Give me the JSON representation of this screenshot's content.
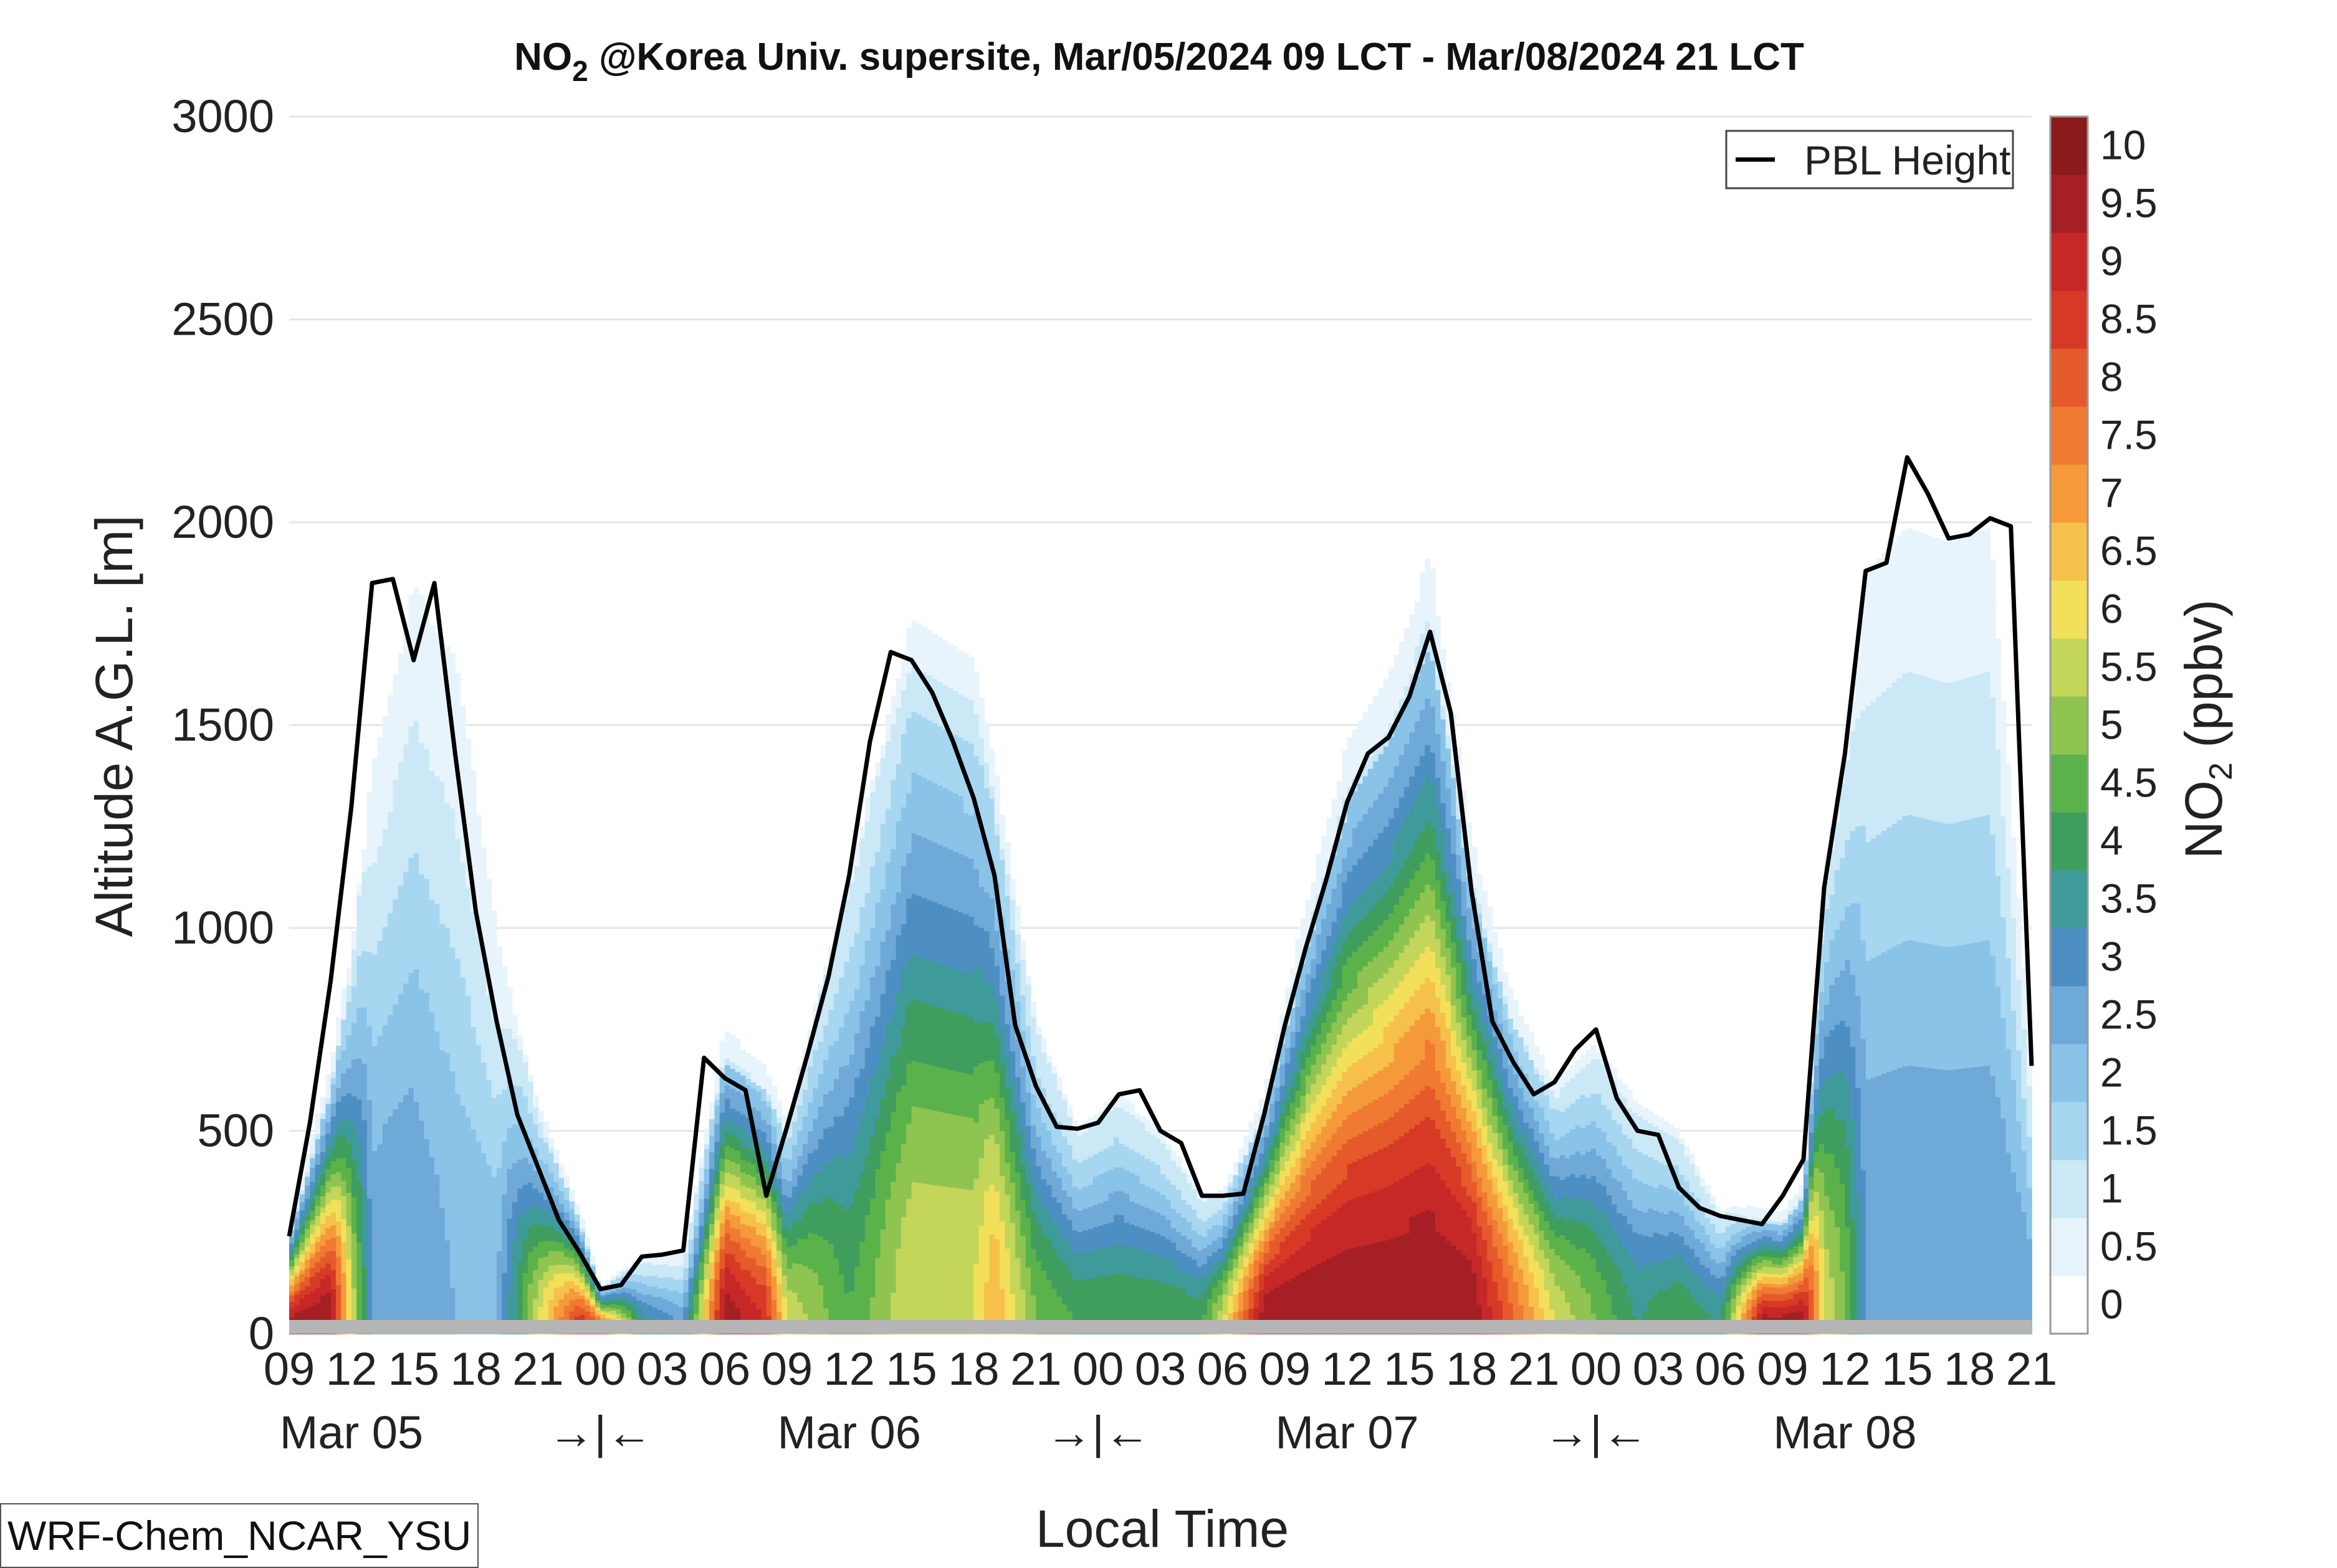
{
  "chart_data": {
    "type": "contour",
    "title_parts": [
      "NO",
      "2",
      " @Korea Univ. supersite, Mar/05/2024 09 LCT - Mar/08/2024 21 LCT"
    ],
    "ylabel": "Altitude A.G.L. [m]",
    "xlabel": "Local Time",
    "ylim": [
      0,
      3000
    ],
    "y_ticks": [
      0,
      500,
      1000,
      1500,
      2000,
      2500,
      3000
    ],
    "x_range_hours": [
      0,
      84
    ],
    "x_hour_ticks": [
      "09",
      "12",
      "15",
      "18",
      "21",
      "00",
      "03",
      "06",
      "09",
      "12",
      "15",
      "18",
      "21",
      "00",
      "03",
      "06",
      "09",
      "12",
      "15",
      "18",
      "21",
      "00",
      "03",
      "06",
      "09",
      "12",
      "15",
      "18",
      "21"
    ],
    "x_day_labels": [
      {
        "label": "Mar 05",
        "hour": 3
      },
      {
        "label": "→|←",
        "hour": 15
      },
      {
        "label": "Mar 06",
        "hour": 27
      },
      {
        "label": "→|←",
        "hour": 39
      },
      {
        "label": "Mar 07",
        "hour": 51
      },
      {
        "label": "→|←",
        "hour": 63
      },
      {
        "label": "Mar 08",
        "hour": 75
      }
    ],
    "legend": {
      "label": "PBL Height",
      "placement": "top-right"
    },
    "colorbar": {
      "label_parts": [
        "NO",
        "2",
        " (ppbv)"
      ],
      "ticks": [
        "0",
        "0.5",
        "1",
        "1.5",
        "2",
        "2.5",
        "3",
        "3.5",
        "4",
        "4.5",
        "5",
        "5.5",
        "6",
        "6.5",
        "7",
        "7.5",
        "8",
        "8.5",
        "9",
        "9.5",
        "10"
      ],
      "levels": [
        0,
        0.5,
        1,
        1.5,
        2,
        2.5,
        3,
        3.5,
        4,
        4.5,
        5,
        5.5,
        6,
        6.5,
        7,
        7.5,
        8,
        8.5,
        9,
        9.5,
        10,
        10.5
      ],
      "colors": [
        "#ffffff",
        "#e8f4fb",
        "#cbe8f6",
        "#a6d6f0",
        "#8ac3e8",
        "#6ea9d8",
        "#4e8fc3",
        "#3f9a9a",
        "#3f9d5e",
        "#5bb24a",
        "#8fc451",
        "#c3d65a",
        "#f2e05a",
        "#f6c14a",
        "#f59a3a",
        "#f07a32",
        "#e55a2a",
        "#d63a26",
        "#c62828",
        "#a51f24",
        "#8b1a1a"
      ]
    },
    "pbl_height": {
      "series_name": "PBL Height",
      "hours": [
        0,
        1,
        2,
        3,
        4,
        5,
        6,
        7,
        8,
        9,
        10,
        11,
        12,
        13,
        14,
        15,
        16,
        17,
        18,
        19,
        20,
        21,
        22,
        23,
        24,
        25,
        26,
        27,
        28,
        29,
        30,
        31,
        32,
        33,
        34,
        35,
        36,
        37,
        38,
        39,
        40,
        41,
        42,
        43,
        44,
        45,
        46,
        47,
        48,
        49,
        50,
        51,
        52,
        53,
        54,
        55,
        56,
        57,
        58,
        59,
        60,
        61,
        62,
        63,
        64,
        65,
        66,
        67,
        68,
        69,
        70,
        71,
        72,
        73,
        74,
        75,
        76,
        77,
        78,
        79,
        80,
        81,
        82,
        83,
        84
      ],
      "values": [
        240,
        520,
        870,
        1300,
        1850,
        1860,
        1660,
        1850,
        1430,
        1040,
        770,
        540,
        410,
        280,
        200,
        110,
        120,
        190,
        195,
        205,
        680,
        630,
        600,
        340,
        510,
        690,
        880,
        1130,
        1460,
        1680,
        1660,
        1580,
        1460,
        1320,
        1130,
        760,
        610,
        510,
        505,
        520,
        590,
        600,
        500,
        470,
        340,
        340,
        345,
        540,
        760,
        950,
        1120,
        1310,
        1430,
        1470,
        1570,
        1730,
        1530,
        1090,
        770,
        670,
        590,
        620,
        700,
        750,
        580,
        500,
        490,
        360,
        310,
        290,
        280,
        270,
        340,
        430,
        1100,
        1430,
        1880,
        1900,
        2160,
        2070,
        1960,
        1970,
        2010,
        1990,
        660
      ]
    },
    "no2_profile": {
      "description_hours": [
        0,
        2,
        3,
        4,
        6,
        8,
        10,
        12,
        14,
        15,
        17,
        19,
        21,
        23,
        24,
        27,
        30,
        33,
        34,
        36,
        38,
        40,
        42,
        44,
        45,
        47,
        49,
        51,
        53,
        55,
        57,
        59,
        61,
        63,
        65,
        67,
        69,
        71,
        72,
        73,
        74,
        75,
        76,
        78,
        80,
        82,
        84
      ],
      "surface_ppbv": [
        10,
        10,
        6,
        3,
        3,
        2.5,
        2.5,
        6,
        9,
        9,
        4,
        3,
        10,
        9,
        6,
        4.5,
        6,
        6,
        7,
        5,
        4.5,
        4.5,
        4.5,
        4.5,
        6,
        10,
        10,
        10,
        10,
        10,
        10,
        8,
        6,
        5,
        4,
        4.5,
        4,
        10,
        10,
        10,
        6,
        5,
        3,
        3,
        3,
        3,
        3
      ],
      "mixing_top_m": [
        240,
        600,
        900,
        1400,
        1850,
        1700,
        1000,
        540,
        280,
        110,
        190,
        205,
        680,
        600,
        500,
        1130,
        1680,
        1580,
        1320,
        760,
        510,
        590,
        500,
        340,
        340,
        540,
        950,
        1310,
        1470,
        1730,
        1100,
        770,
        590,
        700,
        580,
        500,
        310,
        280,
        270,
        340,
        1100,
        1400,
        1880,
        2000,
        1960,
        2000,
        660
      ]
    }
  },
  "model_tag": "WRF-Chem_NCAR_YSU"
}
